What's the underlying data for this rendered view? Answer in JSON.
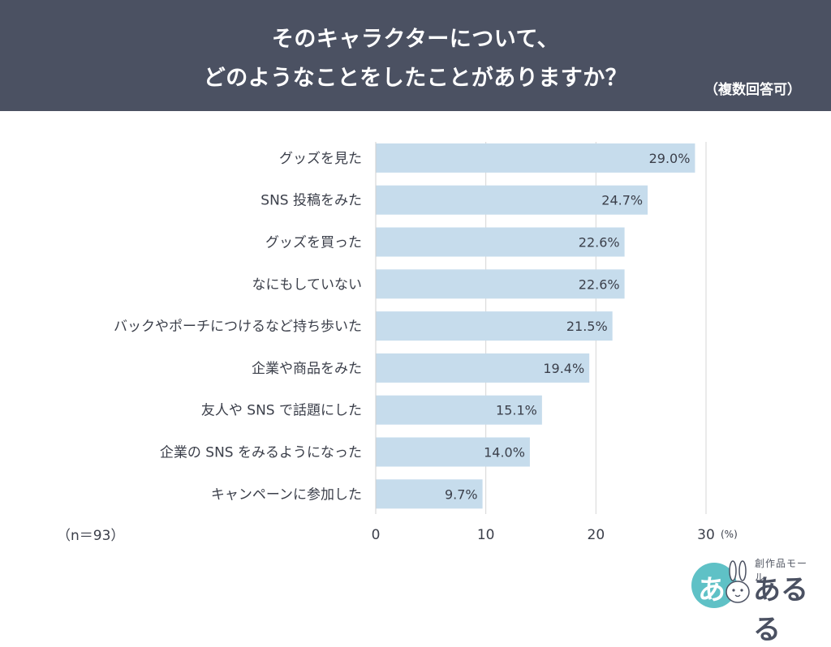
{
  "header": {
    "title_line1": "そのキャラクターについて、",
    "title_line2": "どのようなことをしたことがありますか？",
    "note": "（複数回答可）"
  },
  "sample_label": "（n＝93）",
  "logo": {
    "sub": "創作品モール",
    "main": "あるる",
    "circle_char": "あ"
  },
  "colors": {
    "header_bg": "#4b5162",
    "bar": "#c6dcec",
    "grid": "#d6d6d6"
  },
  "chart_data": {
    "type": "bar",
    "orientation": "horizontal",
    "categories": [
      "グッズを見た",
      "SNS 投稿をみた",
      "グッズを買った",
      "なにもしていない",
      "バックやポーチにつけるなど持ち歩いた",
      "企業や商品をみた",
      "友人や SNS で話題にした",
      "企業の SNS をみるようになった",
      "キャンペーンに参加した"
    ],
    "values": [
      29.0,
      24.7,
      22.6,
      22.6,
      21.5,
      19.4,
      15.1,
      14.0,
      9.7
    ],
    "value_labels": [
      "29.0%",
      "24.7%",
      "22.6%",
      "22.6%",
      "21.5%",
      "19.4%",
      "15.1%",
      "14.0%",
      "9.7%"
    ],
    "xlim": [
      0,
      30
    ],
    "xticks": [
      0,
      10,
      20,
      30
    ],
    "xtick_labels": [
      "0",
      "10",
      "20",
      "30"
    ],
    "unit": "(%)",
    "grid": true
  }
}
